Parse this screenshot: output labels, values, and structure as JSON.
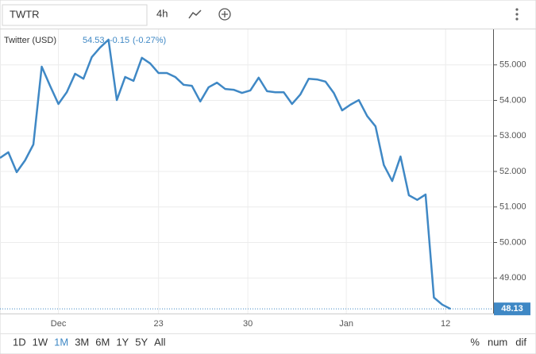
{
  "toolbar": {
    "symbol": "TWTR",
    "interval": "4h"
  },
  "chart_data": {
    "type": "line",
    "series": [
      {
        "name": "Twitter (USD)",
        "color": "#3f88c5",
        "x": [
          0,
          1,
          2,
          3,
          4,
          5,
          6,
          7,
          8,
          9,
          10,
          11,
          12,
          13,
          14,
          15,
          16,
          17,
          18,
          19,
          20,
          21,
          22,
          23,
          24,
          25,
          26,
          27,
          28,
          29,
          30,
          31,
          32,
          33,
          34,
          35,
          36,
          37,
          38,
          39,
          40,
          41,
          42,
          43,
          44,
          45,
          46,
          47,
          48,
          49,
          50,
          51,
          52,
          53,
          54
        ],
        "values": [
          52.38,
          52.54,
          51.98,
          52.31,
          52.76,
          54.95,
          54.41,
          53.9,
          54.23,
          54.75,
          54.61,
          55.22,
          55.49,
          55.71,
          54.01,
          54.66,
          54.55,
          55.2,
          55.04,
          54.77,
          54.77,
          54.66,
          54.44,
          54.41,
          53.97,
          54.37,
          54.5,
          54.32,
          54.3,
          54.21,
          54.28,
          54.64,
          54.26,
          54.23,
          54.23,
          53.9,
          54.17,
          54.61,
          54.59,
          54.53,
          54.21,
          53.72,
          53.88,
          54.01,
          53.56,
          53.27,
          52.18,
          51.73,
          52.42,
          51.33,
          51.2,
          51.35,
          48.45,
          48.25,
          48.13
        ]
      }
    ],
    "legend_price": 54.53,
    "legend_change": -0.15,
    "legend_change_pct": "(-0.27%)",
    "current_price": 48.13,
    "xlim": [
      0,
      59
    ],
    "xticks": [
      {
        "value": 7,
        "label": "Dec"
      },
      {
        "value": 19,
        "label": "23"
      },
      {
        "value": 29.7,
        "label": "30"
      },
      {
        "value": 41.5,
        "label": "Jan"
      },
      {
        "value": 53.4,
        "label": "12"
      }
    ],
    "ylim": [
      48,
      56
    ],
    "yticks": [
      {
        "value": 49,
        "label": "49.000"
      },
      {
        "value": 50,
        "label": "50.000"
      },
      {
        "value": 51,
        "label": "51.000"
      },
      {
        "value": 52,
        "label": "52.000"
      },
      {
        "value": 53,
        "label": "53.000"
      },
      {
        "value": 54,
        "label": "54.000"
      },
      {
        "value": 55,
        "label": "55.000"
      }
    ],
    "grid": true
  },
  "ranges": [
    "1D",
    "1W",
    "1M",
    "3M",
    "6M",
    "1Y",
    "5Y",
    "All"
  ],
  "active_range": 2,
  "scale_modes": [
    "%",
    "num",
    "dif"
  ]
}
